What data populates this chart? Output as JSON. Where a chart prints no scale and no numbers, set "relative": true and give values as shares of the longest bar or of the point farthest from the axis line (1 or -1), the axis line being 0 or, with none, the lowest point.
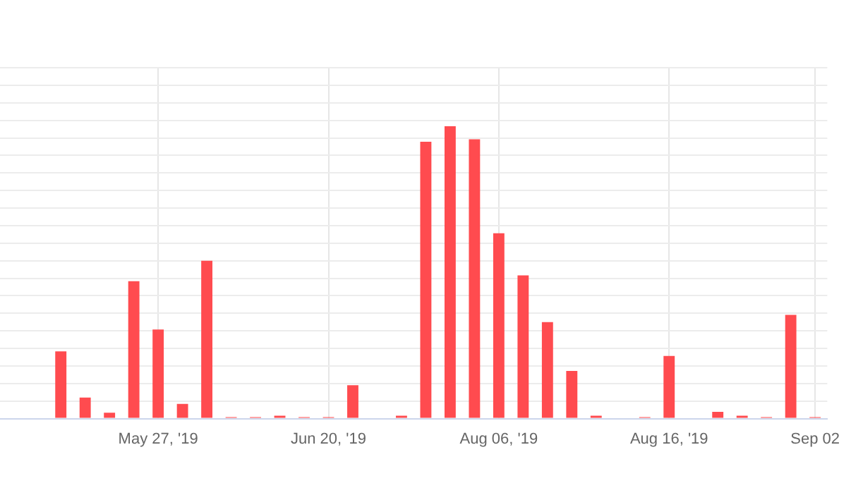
{
  "chart_data": {
    "type": "bar",
    "relative": true,
    "grid": true,
    "legend": false,
    "color": "#ff4b4f",
    "categories": [
      null,
      null,
      null,
      null,
      null,
      null,
      "May 27, '19",
      null,
      null,
      null,
      null,
      null,
      null,
      "Jun 20, '19",
      null,
      null,
      null,
      null,
      null,
      null,
      "Aug 06, '19",
      null,
      null,
      null,
      null,
      null,
      null,
      "Aug 16, '19",
      null,
      null,
      null,
      null,
      null,
      "Sep 02"
    ],
    "values": [
      0,
      0,
      0.23,
      0.072,
      0.02,
      0.47,
      0.305,
      0.05,
      0.54,
      0.005,
      0.005,
      0.01,
      0.005,
      0.005,
      0.114,
      0,
      0.01,
      0.947,
      1,
      0.955,
      0.634,
      0.49,
      0.33,
      0.163,
      0.01,
      0,
      0.005,
      0.214,
      0,
      0.023,
      0.01,
      0.005,
      0.355,
      0.005
    ]
  }
}
